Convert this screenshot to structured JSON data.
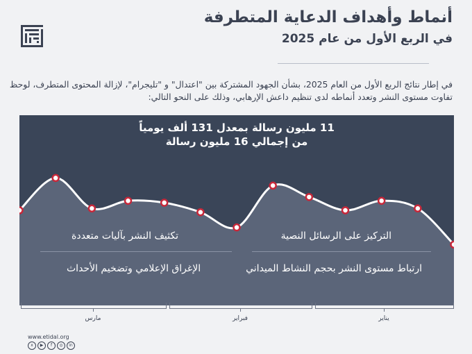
{
  "header": {
    "title": "أنماط وأهداف الدعاية المتطرفة",
    "subtitle": "في الربع الأول من عام 2025"
  },
  "intro": {
    "text": "في إطار نتائج الربع الأول من العام 2025، بشأن الجهود المشتركة بين \"اعتدال\" و \"تليجرام\"، لإزالة المحتوى المتطرف، لوحظ تفاوت مستوى النشر وتعدد أنماطه لدى تنظيم داعش الإرهابي، وذلك على النحو التالي:"
  },
  "stats": {
    "line1": "11 مليون رسالة بمعدل 131 ألف يومياً",
    "line2": "من إجمالي 16 مليون رسالة"
  },
  "patterns": {
    "p1": "التركيز على الرسائل النصية",
    "p2": "تكثيف النشر بآليات متعددة",
    "p3": "ارتباط مستوى النشر بحجم النشاط الميداني",
    "p4": "الإغراق الإعلامي وتضخيم الأحداث"
  },
  "timeline": {
    "months": [
      "يناير",
      "فبراير",
      "مارس"
    ]
  },
  "footer": {
    "url": "www.etidal.org",
    "social_icons": [
      "x-icon",
      "youtube-icon",
      "facebook-icon",
      "instagram-icon",
      "linkedin-icon"
    ]
  },
  "colors": {
    "chart_top": "#3a4558",
    "chart_fill": "#5b6579",
    "line": "#ffffff",
    "point_fill": "#ffffff",
    "point_stroke": "#c8283a",
    "page_bg": "#f1f2f4"
  },
  "chart_data": {
    "type": "line",
    "note_visible": "activity level line (no axis values printed)",
    "x": [
      0,
      1,
      2,
      3,
      4,
      5,
      6,
      7,
      8,
      9,
      10,
      11,
      12
    ],
    "values": [
      0.5,
      0.67,
      0.51,
      0.55,
      0.54,
      0.49,
      0.41,
      0.63,
      0.57,
      0.5,
      0.55,
      0.51,
      0.32
    ],
    "ylim": [
      0,
      1
    ],
    "grid": false,
    "xlabel": "",
    "ylabel": ""
  }
}
